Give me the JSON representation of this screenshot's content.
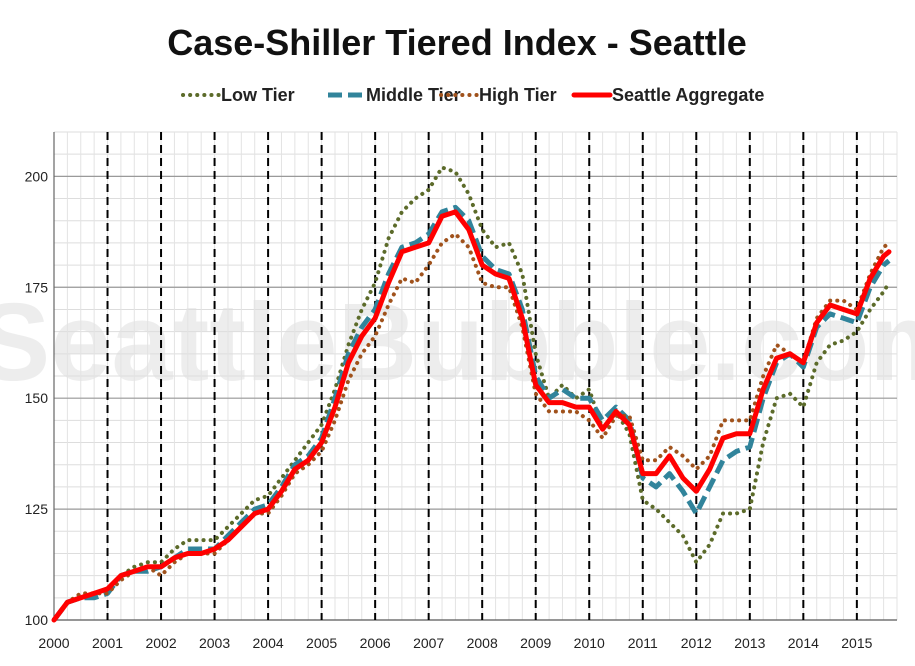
{
  "chart_data": {
    "type": "line",
    "title": "Case-Shiller Tiered Index - Seattle",
    "watermark": "SeattleBubble.com",
    "xlabel": "",
    "ylabel": "",
    "xlim": [
      2000.0,
      2015.75
    ],
    "ylim": [
      100,
      210
    ],
    "x_ticks": [
      "2000",
      "2001",
      "2002",
      "2003",
      "2004",
      "2005",
      "2006",
      "2007",
      "2008",
      "2009",
      "2010",
      "2011",
      "2012",
      "2013",
      "2014",
      "2015"
    ],
    "y_ticks": [
      "100",
      "125",
      "150",
      "175",
      "200"
    ],
    "grid": true,
    "legend": {
      "placement": "top"
    },
    "series": [
      {
        "name": "Low Tier",
        "color": "#5c6b2a",
        "dash": "dotted",
        "x": [
          2000.0,
          2000.25,
          2000.5,
          2000.75,
          2001.0,
          2001.25,
          2001.5,
          2001.75,
          2002.0,
          2002.25,
          2002.5,
          2002.75,
          2003.0,
          2003.25,
          2003.5,
          2003.75,
          2004.0,
          2004.25,
          2004.5,
          2004.75,
          2005.0,
          2005.25,
          2005.5,
          2005.75,
          2006.0,
          2006.25,
          2006.5,
          2006.75,
          2007.0,
          2007.25,
          2007.5,
          2007.75,
          2008.0,
          2008.25,
          2008.5,
          2008.75,
          2009.0,
          2009.25,
          2009.5,
          2009.75,
          2010.0,
          2010.25,
          2010.5,
          2010.75,
          2011.0,
          2011.25,
          2011.5,
          2011.75,
          2012.0,
          2012.25,
          2012.5,
          2012.75,
          2013.0,
          2013.25,
          2013.5,
          2013.75,
          2014.0,
          2014.25,
          2014.5,
          2014.75,
          2015.0,
          2015.25,
          2015.5,
          2015.6
        ],
        "values": [
          100,
          104,
          105,
          106,
          107,
          110,
          112,
          113,
          113,
          116,
          118,
          118,
          118,
          121,
          124,
          127,
          128,
          132,
          136,
          140,
          144,
          152,
          162,
          170,
          176,
          186,
          192,
          195,
          197,
          202,
          201,
          196,
          188,
          184,
          185,
          178,
          160,
          150,
          153,
          150,
          152,
          143,
          147,
          142,
          127,
          125,
          122,
          119,
          113,
          117,
          124,
          124,
          125,
          140,
          150,
          151,
          148,
          158,
          162,
          163,
          165,
          170,
          174,
          176
        ]
      },
      {
        "name": "Middle Tier",
        "color": "#31849b",
        "dash": "dashed",
        "x": [
          2000.0,
          2000.25,
          2000.5,
          2000.75,
          2001.0,
          2001.25,
          2001.5,
          2001.75,
          2002.0,
          2002.25,
          2002.5,
          2002.75,
          2003.0,
          2003.25,
          2003.5,
          2003.75,
          2004.0,
          2004.25,
          2004.5,
          2004.75,
          2005.0,
          2005.25,
          2005.5,
          2005.75,
          2006.0,
          2006.25,
          2006.5,
          2006.75,
          2007.0,
          2007.25,
          2007.5,
          2007.75,
          2008.0,
          2008.25,
          2008.5,
          2008.75,
          2009.0,
          2009.25,
          2009.5,
          2009.75,
          2010.0,
          2010.25,
          2010.5,
          2010.75,
          2011.0,
          2011.25,
          2011.5,
          2011.75,
          2012.0,
          2012.25,
          2012.5,
          2012.75,
          2013.0,
          2013.25,
          2013.5,
          2013.75,
          2014.0,
          2014.25,
          2014.5,
          2014.75,
          2015.0,
          2015.25,
          2015.5,
          2015.6
        ],
        "values": [
          100,
          104,
          105,
          105,
          106,
          110,
          111,
          111,
          112,
          114,
          116,
          116,
          116,
          119,
          122,
          125,
          126,
          130,
          135,
          137,
          141,
          150,
          160,
          166,
          170,
          178,
          184,
          185,
          187,
          192,
          193,
          190,
          182,
          179,
          178,
          170,
          155,
          150,
          152,
          150,
          150,
          145,
          148,
          145,
          132,
          130,
          133,
          129,
          124,
          130,
          136,
          138,
          139,
          150,
          158,
          160,
          157,
          166,
          169,
          168,
          167,
          175,
          180,
          181
        ]
      },
      {
        "name": "High Tier",
        "color": "#a0521c",
        "dash": "dotted",
        "x": [
          2000.0,
          2000.25,
          2000.5,
          2000.75,
          2001.0,
          2001.25,
          2001.5,
          2001.75,
          2002.0,
          2002.25,
          2002.5,
          2002.75,
          2003.0,
          2003.25,
          2003.5,
          2003.75,
          2004.0,
          2004.25,
          2004.5,
          2004.75,
          2005.0,
          2005.25,
          2005.5,
          2005.75,
          2006.0,
          2006.25,
          2006.5,
          2006.75,
          2007.0,
          2007.25,
          2007.5,
          2007.75,
          2008.0,
          2008.25,
          2008.5,
          2008.75,
          2009.0,
          2009.25,
          2009.5,
          2009.75,
          2010.0,
          2010.25,
          2010.5,
          2010.75,
          2011.0,
          2011.25,
          2011.5,
          2011.75,
          2012.0,
          2012.25,
          2012.5,
          2012.75,
          2013.0,
          2013.25,
          2013.5,
          2013.75,
          2014.0,
          2014.25,
          2014.5,
          2014.75,
          2015.0,
          2015.25,
          2015.5,
          2015.6
        ],
        "values": [
          100,
          104,
          106,
          106,
          106,
          109,
          111,
          112,
          110,
          113,
          115,
          115,
          115,
          118,
          121,
          124,
          124,
          128,
          133,
          135,
          138,
          145,
          154,
          160,
          164,
          171,
          177,
          176,
          180,
          185,
          187,
          184,
          176,
          175,
          175,
          166,
          151,
          147,
          147,
          147,
          145,
          141,
          146,
          146,
          136,
          136,
          139,
          137,
          134,
          137,
          145,
          145,
          145,
          155,
          162,
          160,
          158,
          168,
          172,
          172,
          170,
          178,
          184,
          185
        ]
      },
      {
        "name": "Seattle Aggregate",
        "color": "#ff0000",
        "dash": "solid",
        "x": [
          2000.0,
          2000.25,
          2000.5,
          2000.75,
          2001.0,
          2001.25,
          2001.5,
          2001.75,
          2002.0,
          2002.25,
          2002.5,
          2002.75,
          2003.0,
          2003.25,
          2003.5,
          2003.75,
          2004.0,
          2004.25,
          2004.5,
          2004.75,
          2005.0,
          2005.25,
          2005.5,
          2005.75,
          2006.0,
          2006.25,
          2006.5,
          2006.75,
          2007.0,
          2007.25,
          2007.5,
          2007.75,
          2008.0,
          2008.25,
          2008.5,
          2008.75,
          2009.0,
          2009.25,
          2009.5,
          2009.75,
          2010.0,
          2010.25,
          2010.5,
          2010.75,
          2011.0,
          2011.25,
          2011.5,
          2011.75,
          2012.0,
          2012.25,
          2012.5,
          2012.75,
          2013.0,
          2013.25,
          2013.5,
          2013.75,
          2014.0,
          2014.25,
          2014.5,
          2014.75,
          2015.0,
          2015.25,
          2015.5,
          2015.6
        ],
        "values": [
          100,
          104,
          105,
          106,
          107,
          110,
          111,
          112,
          112,
          114,
          115,
          115,
          116,
          118,
          121,
          124,
          125,
          129,
          134,
          136,
          140,
          148,
          158,
          164,
          168,
          176,
          183,
          184,
          185,
          191,
          192,
          188,
          180,
          178,
          177,
          168,
          153,
          149,
          149,
          148,
          148,
          143,
          147,
          144,
          133,
          133,
          137,
          132,
          129,
          134,
          141,
          142,
          142,
          152,
          159,
          160,
          158,
          167,
          171,
          170,
          169,
          177,
          182,
          183
        ]
      }
    ]
  }
}
